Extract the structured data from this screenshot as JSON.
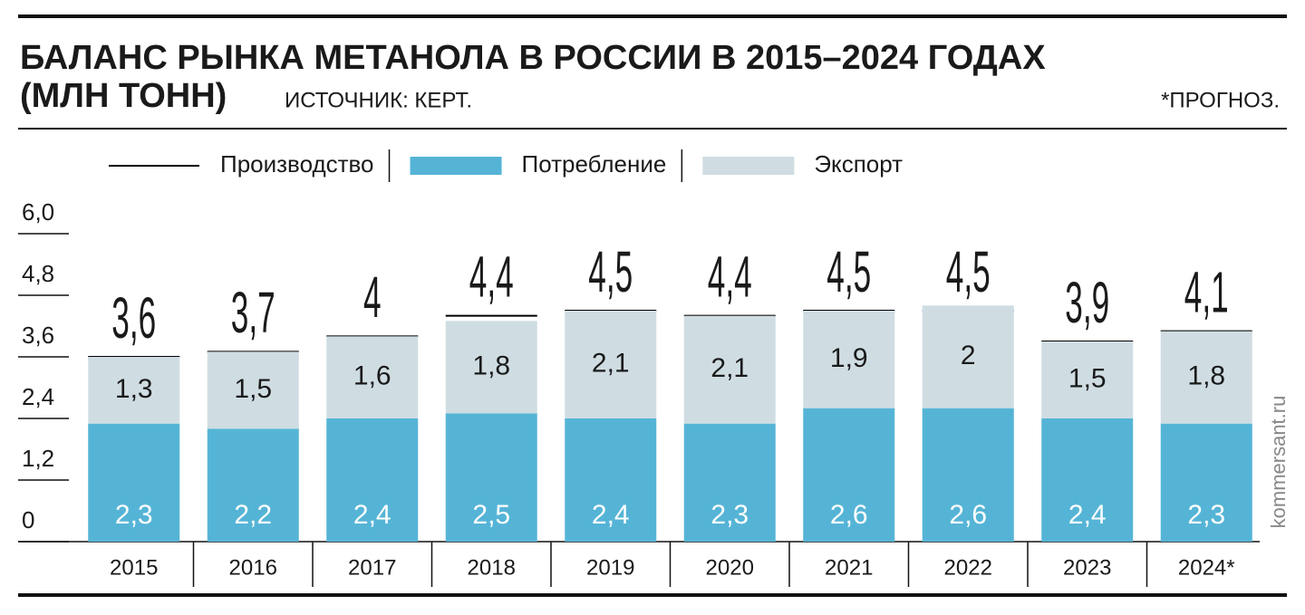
{
  "chart_data": {
    "type": "bar",
    "title": "БАЛАНС РЫНКА МЕТАНОЛА В РОССИИ В 2015–2024 ГОДАХ",
    "subtitle": "(МЛН ТОНН)",
    "source": "ИСТОЧНИК: КЕРТ.",
    "note": "*ПРОГНОЗ.",
    "watermark": "kommersant.ru",
    "stacked": true,
    "categories": [
      "2015",
      "2016",
      "2017",
      "2018",
      "2019",
      "2020",
      "2021",
      "2022",
      "2023",
      "2024*"
    ],
    "series": [
      {
        "name": "Производство",
        "type": "line",
        "color": "#000000",
        "values": [
          3.6,
          3.7,
          4,
          4.4,
          4.5,
          4.4,
          4.5,
          4.5,
          3.9,
          4.1
        ],
        "value_labels": [
          "3,6",
          "3,7",
          "4",
          "4,4",
          "4,5",
          "4,4",
          "4,5",
          "4,5",
          "3,9",
          "4,1"
        ]
      },
      {
        "name": "Потребление",
        "color": "#55b4d6",
        "values": [
          2.3,
          2.2,
          2.4,
          2.5,
          2.4,
          2.3,
          2.6,
          2.6,
          2.4,
          2.3
        ],
        "value_labels": [
          "2,3",
          "2,2",
          "2,4",
          "2,5",
          "2,4",
          "2,3",
          "2,6",
          "2,6",
          "2,4",
          "2,3"
        ]
      },
      {
        "name": "Экспорт",
        "color": "#cfdde2",
        "values": [
          1.3,
          1.5,
          1.6,
          1.8,
          2.1,
          2.1,
          1.9,
          2,
          1.5,
          1.8
        ],
        "value_labels": [
          "1,3",
          "1,5",
          "1,6",
          "1,8",
          "2,1",
          "2,1",
          "1,9",
          "2",
          "1,5",
          "1,8"
        ]
      }
    ],
    "ylim": [
      0,
      6
    ],
    "yticks": [
      0,
      {
        "value": 1.2,
        "label": "1,2"
      },
      {
        "value": 2.4,
        "label": "2,4"
      },
      {
        "value": 3.6,
        "label": "3,6"
      },
      {
        "value": 4.8,
        "label": "4,8"
      },
      {
        "value": 6,
        "label": "6,0"
      }
    ]
  }
}
